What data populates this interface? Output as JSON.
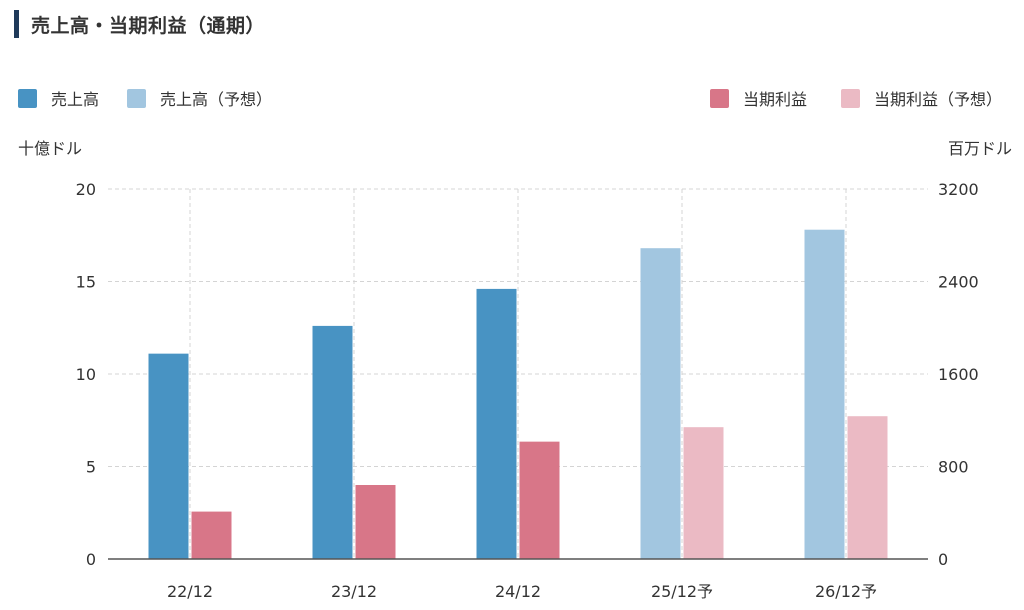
{
  "title": "売上高・当期利益（通期）",
  "chart_data": {
    "type": "bar",
    "categories": [
      "22/12",
      "23/12",
      "24/12",
      "25/12予",
      "26/12予"
    ],
    "series": [
      {
        "name": "売上高",
        "axis": "left",
        "color": "#4893c3",
        "values": [
          11.1,
          12.6,
          14.6,
          null,
          null
        ]
      },
      {
        "name": "売上高（予想）",
        "axis": "left",
        "color": "#a2c6e0",
        "values": [
          null,
          null,
          null,
          16.8,
          17.8
        ]
      },
      {
        "name": "当期利益",
        "axis": "right",
        "color": "#d87688",
        "values": [
          410,
          640,
          1015,
          null,
          null
        ]
      },
      {
        "name": "当期利益（予想）",
        "axis": "right",
        "color": "#ebbac4",
        "values": [
          null,
          null,
          null,
          1140,
          1235
        ]
      }
    ],
    "y_left": {
      "label": "十億ドル",
      "lim": [
        0,
        20
      ],
      "ticks": [
        0,
        5,
        10,
        15,
        20
      ]
    },
    "y_right": {
      "label": "百万ドル",
      "lim": [
        0,
        3200
      ],
      "ticks": [
        0,
        800,
        1600,
        2400,
        3200
      ]
    },
    "grid": true,
    "legend_placement": "top"
  }
}
